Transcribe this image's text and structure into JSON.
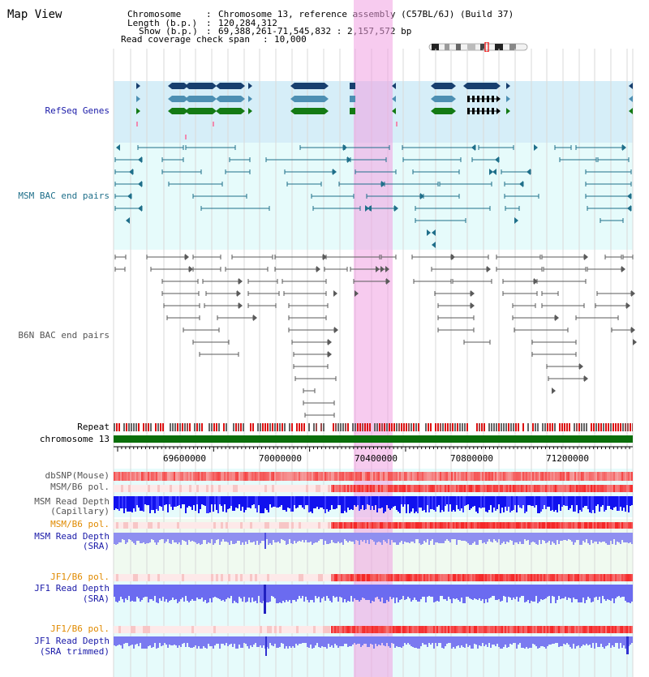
{
  "page_title": "Map View",
  "info": {
    "chromosome_label": "Chromosome",
    "chromosome_value": "Chromosome 13, reference assembly (C57BL/6J) (Build 37)",
    "length_label": "Length (b.p.)",
    "length_value": "120,284,312",
    "show_label": "Show (b.p.)",
    "show_value": "69,388,261-71,545,832 : 2,157,572 bp",
    "coverage_label": "Read coverage check span",
    "coverage_value": "10,000"
  },
  "tracks": {
    "refseq": "RefSeq Genes",
    "msm_bac": "MSM BAC end pairs",
    "b6n_bac": "B6N BAC end pairs",
    "repeat": "Repeat",
    "chromosome": "chromosome 13",
    "dbsnp": "dbSNP(Mouse)",
    "msm_b6_pol_1": "MSM/B6 pol.",
    "msm_read_depth_cap_1": "MSM Read Depth",
    "msm_read_depth_cap_2": "(Capillary)",
    "msm_b6_pol_2": "MSM/B6 pol.",
    "msm_read_depth_sra_1": "MSM Read Depth",
    "msm_read_depth_sra_2": "(SRA)",
    "jf1_b6_pol_1": "JF1/B6 pol.",
    "jf1_read_depth_sra_1": "JF1 Read Depth",
    "jf1_read_depth_sra_2": "(SRA)",
    "jf1_b6_pol_2": "JF1/B6 pol.",
    "jf1_read_depth_trim_1": "JF1 Read Depth",
    "jf1_read_depth_trim_2": "(SRA trimmed)"
  },
  "axis": {
    "ticks": [
      "69600000",
      "70000000",
      "70400000",
      "70800000",
      "71200000"
    ]
  },
  "colors": {
    "refseq_bg": "#d6eef8",
    "bac_bg": "#e6fbfb",
    "highlight": "#f3b7e6",
    "label_blue": "#1a1aa8",
    "label_teal": "#1f6f8a",
    "label_orange": "#e08a00",
    "gene_navy": "#173f6e",
    "gene_steel": "#4d8fb3",
    "gene_green": "#147a14",
    "bac_teal": "#1f6f8a",
    "bac_gray": "#5a5a5a",
    "chrom_green": "#0a6e0a"
  }
}
